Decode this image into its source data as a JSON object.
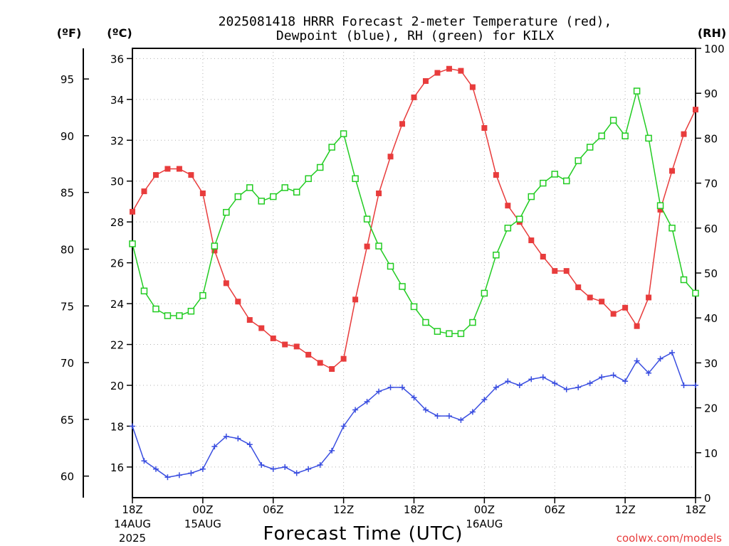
{
  "chart_data": {
    "type": "line",
    "title_line1": "2025081418 HRRR Forecast 2-meter Temperature (red),",
    "title_line2": "Dewpoint (blue), RH (green) for KILX",
    "xlabel": "Forecast Time (UTC)",
    "left_unit_f": "(ºF)",
    "left_unit_c": "(ºC)",
    "right_unit": "(RH)",
    "credit": "coolwx.com/models",
    "x_ticks": [
      {
        "hour": 0,
        "label": "18Z",
        "sub1": "14AUG",
        "sub2": "2025"
      },
      {
        "hour": 6,
        "label": "00Z",
        "sub1": "15AUG",
        "sub2": ""
      },
      {
        "hour": 12,
        "label": "06Z",
        "sub1": "",
        "sub2": ""
      },
      {
        "hour": 18,
        "label": "12Z",
        "sub1": "",
        "sub2": ""
      },
      {
        "hour": 24,
        "label": "18Z",
        "sub1": "",
        "sub2": ""
      },
      {
        "hour": 30,
        "label": "00Z",
        "sub1": "16AUG",
        "sub2": ""
      },
      {
        "hour": 36,
        "label": "06Z",
        "sub1": "",
        "sub2": ""
      },
      {
        "hour": 42,
        "label": "12Z",
        "sub1": "",
        "sub2": ""
      },
      {
        "hour": 48,
        "label": "18Z",
        "sub1": "",
        "sub2": ""
      }
    ],
    "xlim": [
      0,
      48
    ],
    "ylim_c": [
      14.5,
      36.5
    ],
    "y_ticks_c": [
      16,
      18,
      20,
      22,
      24,
      26,
      28,
      30,
      32,
      34,
      36
    ],
    "y_ticks_f": [
      60,
      65,
      70,
      75,
      80,
      85,
      90,
      95
    ],
    "ylim_rh": [
      0,
      100
    ],
    "y_ticks_rh": [
      0,
      10,
      20,
      30,
      40,
      50,
      60,
      70,
      80,
      90,
      100
    ],
    "grid": true,
    "series": [
      {
        "name": "Temperature",
        "color": "#e83c3c",
        "marker": "filled-square",
        "axis": "celsius",
        "values": [
          28.5,
          29.5,
          30.3,
          30.6,
          30.6,
          30.3,
          29.4,
          26.6,
          25.0,
          24.1,
          23.2,
          22.8,
          22.3,
          22.0,
          21.9,
          21.5,
          21.1,
          20.8,
          21.3,
          24.2,
          26.8,
          29.4,
          31.2,
          32.8,
          34.1,
          34.9,
          35.3,
          35.5,
          35.4,
          34.6,
          32.6,
          30.3,
          28.8,
          28.0,
          27.1,
          26.3,
          25.6,
          25.6,
          24.8,
          24.3,
          24.1,
          23.5,
          23.8,
          22.9,
          24.3,
          28.6,
          30.5,
          32.3,
          33.5
        ]
      },
      {
        "name": "Dewpoint",
        "color": "#3a4ee0",
        "marker": "plus",
        "axis": "celsius",
        "values": [
          18.0,
          16.3,
          15.9,
          15.5,
          15.6,
          15.7,
          15.9,
          17.0,
          17.5,
          17.4,
          17.1,
          16.1,
          15.9,
          16.0,
          15.7,
          15.9,
          16.1,
          16.8,
          18.0,
          18.8,
          19.2,
          19.7,
          19.9,
          19.9,
          19.4,
          18.8,
          18.5,
          18.5,
          18.3,
          18.7,
          19.3,
          19.9,
          20.2,
          20.0,
          20.3,
          20.4,
          20.1,
          19.8,
          19.9,
          20.1,
          20.4,
          20.5,
          20.2,
          21.2,
          20.6,
          21.3,
          21.6,
          20.0,
          20.0
        ]
      },
      {
        "name": "RH",
        "color": "#22cc22",
        "marker": "open-square",
        "axis": "rh",
        "values": [
          56.5,
          46,
          42,
          40.5,
          40.5,
          41.5,
          45,
          56,
          63.5,
          67,
          69,
          66,
          67,
          69,
          68,
          71,
          73.5,
          78,
          81,
          71,
          62,
          56,
          51.5,
          47,
          42.5,
          39,
          37,
          36.5,
          36.5,
          39,
          45.5,
          54,
          60,
          62,
          67,
          70,
          72,
          70.5,
          75,
          78,
          80.5,
          84,
          80.5,
          90.5,
          80,
          65,
          60,
          48.5,
          45.5
        ]
      }
    ]
  }
}
